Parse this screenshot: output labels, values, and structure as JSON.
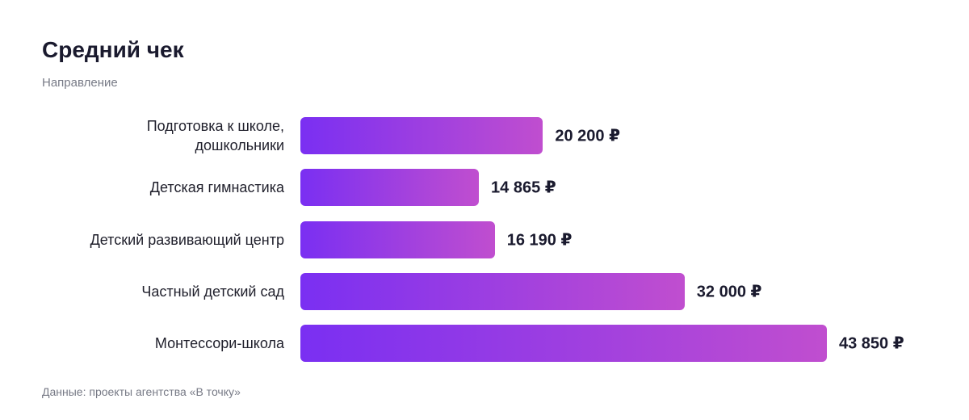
{
  "chart_data": {
    "type": "bar",
    "orientation": "horizontal",
    "title": "Средний чек",
    "y_label": "Направление",
    "categories": [
      "Подготовка к школе,\nдошкольники",
      "Детская гимнастика",
      "Детский развивающий центр",
      "Частный детский сад",
      "Монтессори-школа"
    ],
    "values": [
      20200,
      14865,
      16190,
      32000,
      43850
    ],
    "value_labels": [
      "20 200 ₽",
      "14 865 ₽",
      "16 190 ₽",
      "32 000 ₽",
      "43 850 ₽"
    ],
    "color": [
      "#7a2ff2",
      "#c04ecf"
    ],
    "source": "Данные: проекты агентства «В точку»"
  }
}
